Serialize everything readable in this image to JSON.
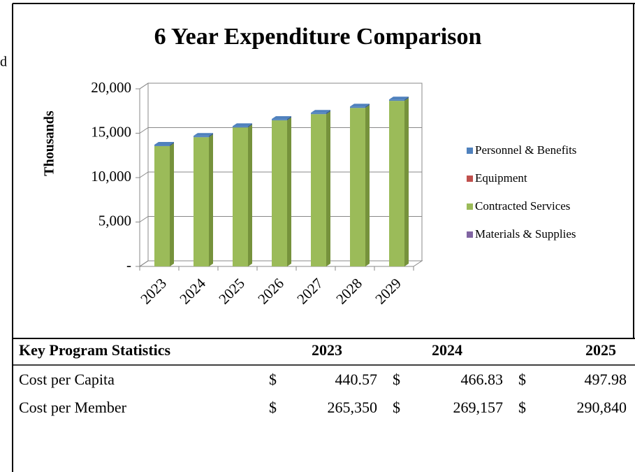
{
  "left_fragment": "d",
  "chart_data": {
    "type": "bar",
    "stacked": true,
    "title": "6 Year Expenditure Comparison",
    "y_label": "Thousands",
    "categories": [
      "2023",
      "2024",
      "2025",
      "2026",
      "2027",
      "2028",
      "2029"
    ],
    "series": [
      {
        "name": "Personnel & Benefits",
        "color": "#4f81bd",
        "values": [
          150,
          150,
          150,
          150,
          150,
          150,
          150
        ]
      },
      {
        "name": "Equipment",
        "color": "#c0504d",
        "values": [
          0,
          0,
          0,
          0,
          0,
          0,
          0
        ]
      },
      {
        "name": "Contracted Services",
        "color": "#9bbb59",
        "values": [
          13550,
          14550,
          15650,
          16450,
          17150,
          17850,
          18650
        ]
      },
      {
        "name": "Materials & Supplies",
        "color": "#8064a2",
        "values": [
          0,
          0,
          0,
          0,
          0,
          0,
          0
        ]
      }
    ],
    "ylim": [
      0,
      20000
    ],
    "yticks": [
      {
        "value": 0,
        "label": "-"
      },
      {
        "value": 5000,
        "label": "5,000"
      },
      {
        "value": 10000,
        "label": "10,000"
      },
      {
        "value": 15000,
        "label": "15,000"
      },
      {
        "value": 20000,
        "label": "20,000"
      }
    ],
    "grid": true,
    "legend": "right"
  },
  "table": {
    "header": [
      "Key Program Statistics",
      "2023",
      "2024",
      "2025"
    ],
    "rows": [
      [
        "Cost per Capita",
        "$",
        "440.57",
        "$",
        "466.83",
        "$",
        "497.98"
      ],
      [
        "Cost per Member",
        "$",
        "265,350",
        "$",
        "269,157",
        "$",
        "290,840"
      ]
    ]
  }
}
